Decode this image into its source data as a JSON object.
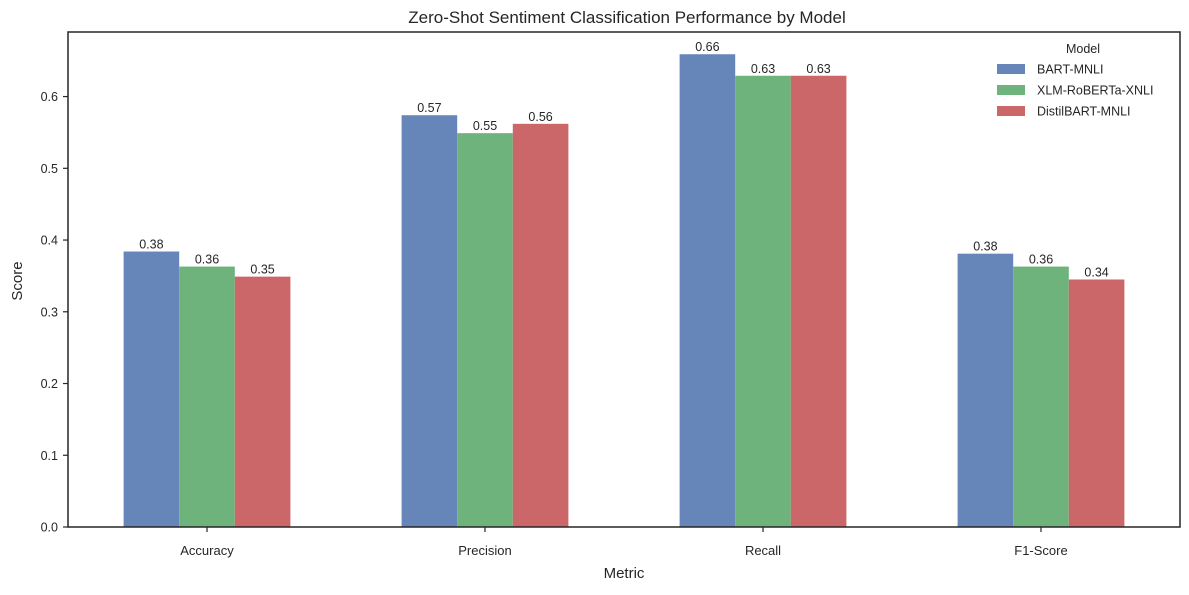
{
  "chart_data": {
    "type": "bar",
    "title": "Zero-Shot Sentiment Classification Performance by Model",
    "xlabel": "Metric",
    "ylabel": "Score",
    "categories": [
      "Accuracy",
      "Precision",
      "Recall",
      "F1-Score"
    ],
    "series": [
      {
        "name": "BART-MNLI",
        "color": "#6686ba",
        "values": [
          0.384,
          0.574,
          0.659,
          0.381
        ],
        "labels": [
          "0.38",
          "0.57",
          "0.66",
          "0.38"
        ]
      },
      {
        "name": "XLM-RoBERTa-XNLI",
        "color": "#6db37b",
        "values": [
          0.363,
          0.549,
          0.629,
          0.363
        ],
        "labels": [
          "0.36",
          "0.55",
          "0.63",
          "0.36"
        ]
      },
      {
        "name": "DistilBART-MNLI",
        "color": "#cb6669",
        "values": [
          0.349,
          0.562,
          0.629,
          0.345
        ],
        "labels": [
          "0.35",
          "0.56",
          "0.63",
          "0.34"
        ]
      }
    ],
    "ylim": [
      0,
      0.69
    ],
    "yticks": [
      "0.0",
      "0.1",
      "0.2",
      "0.3",
      "0.4",
      "0.5",
      "0.6"
    ],
    "legend": {
      "title": "Model",
      "placement": "top-right"
    },
    "grid": false
  }
}
